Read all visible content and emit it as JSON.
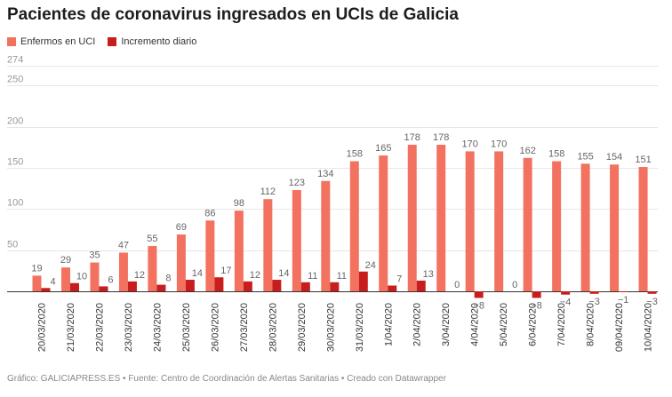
{
  "chart_data": {
    "type": "bar",
    "title": "Pacientes de coronavirus ingresados en UCIs de Galicia",
    "categories": [
      "20/03/2020",
      "21/03/2020",
      "22/03/2020",
      "23/03/2020",
      "24/03/2020",
      "25/03/2020",
      "26/03/2020",
      "27/03/2020",
      "28/03/2020",
      "29/03/2020",
      "30/03/2020",
      "31/03/2020",
      "1/04/2020",
      "2/04/2020",
      "3/04/2020",
      "4/04/2020",
      "5/04/2020",
      "6/04/2020",
      "7/04/2020",
      "8/04/2020",
      "09/04/2020",
      "10/04/2020"
    ],
    "series": [
      {
        "name": "Enfermos en UCI",
        "color": "#f2725f",
        "values": [
          19,
          29,
          35,
          47,
          55,
          69,
          86,
          98,
          112,
          123,
          134,
          158,
          165,
          178,
          178,
          170,
          170,
          162,
          158,
          155,
          154,
          151
        ],
        "labels": [
          "19",
          "29",
          "35",
          "47",
          "55",
          "69",
          "86",
          "98",
          "112",
          "123",
          "134",
          "158",
          "165",
          "178",
          "178",
          "170",
          "170",
          "162",
          "158",
          "155",
          "154",
          "151"
        ]
      },
      {
        "name": "Incremento diario",
        "color": "#c71e1d",
        "values": [
          4,
          10,
          6,
          12,
          8,
          14,
          17,
          12,
          14,
          11,
          11,
          24,
          7,
          13,
          0,
          -8,
          0,
          -8,
          -4,
          -3,
          -1,
          -3
        ],
        "labels": [
          "4",
          "10",
          "6",
          "12",
          "8",
          "14",
          "17",
          "12",
          "14",
          "11",
          "11",
          "24",
          "7",
          "13",
          "0",
          "−8",
          "0",
          "−8",
          "−4",
          "−3",
          "−1",
          "−3"
        ]
      }
    ],
    "yticks": [
      50,
      100,
      150,
      200,
      250,
      274
    ],
    "ytick_labels": [
      "50",
      "100",
      "150",
      "200",
      "250",
      "274"
    ],
    "ylim": [
      -10,
      274
    ],
    "grid": true,
    "legend_position": "top-left"
  },
  "footer": {
    "source": "Gráfico: GALICIAPRESS.ES • Fuente: Centro de Coordinación de Alertas Sanitarias • Creado con Datawrapper"
  }
}
